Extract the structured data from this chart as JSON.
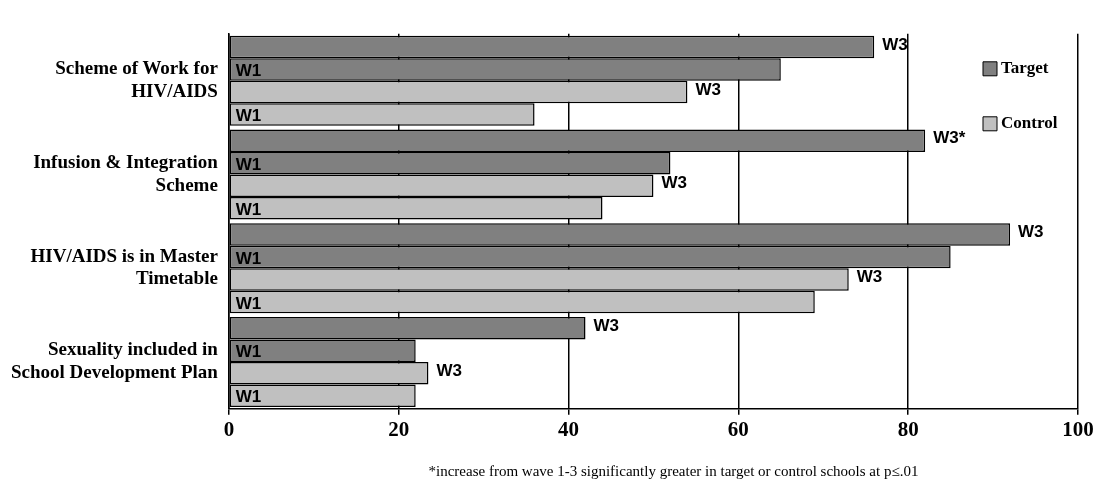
{
  "chart_data": {
    "type": "bar",
    "orientation": "horizontal",
    "categories": [
      "Scheme of Work for HIV/AIDS",
      "Infusion & Integration Scheme",
      "HIV/AIDS is in Master Timetable",
      "Sexuality included in School Development Plan"
    ],
    "series": [
      {
        "name": "Target",
        "color": "#808080",
        "values": [
          76,
          82,
          92,
          42
        ],
        "value_labels": [
          "W3",
          "W3*",
          "W3",
          "W3"
        ]
      },
      {
        "color": "#808080",
        "values": [
          65,
          52,
          85,
          22
        ],
        "value_labels": [
          "W1",
          "W1",
          "W1",
          "W1"
        ]
      },
      {
        "name": "Control",
        "color": "#c0c0c0",
        "values": [
          54,
          50,
          73,
          23.5
        ],
        "value_labels": [
          "W3",
          "W3",
          "W3",
          "W3"
        ]
      },
      {
        "color": "#c0c0c0",
        "values": [
          36,
          44,
          69,
          22
        ],
        "value_labels": [
          "W1",
          "W1",
          "W1",
          "W1"
        ]
      }
    ],
    "xlim": [
      0,
      100
    ],
    "xticks": [
      0,
      20,
      40,
      60,
      80,
      100
    ],
    "grid": "x",
    "legend": "top right",
    "annotations": [
      "*increase from wave 1-3 significantly greater in target or control schools at p≤.01"
    ]
  }
}
